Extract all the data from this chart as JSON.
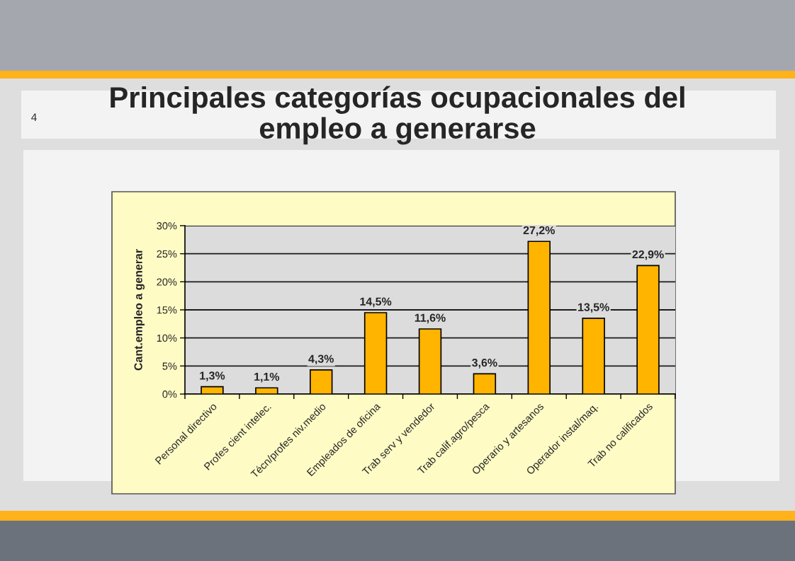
{
  "chart_data": {
    "type": "bar",
    "title": "Principales categorías ocupacionales del\nempleo a generarse",
    "ylabel": "Cant.empleo a generar",
    "annotations": [
      "4"
    ],
    "categories": [
      "Personal directivo",
      "Profes cient intelec.",
      "Técn/profes niv.medio",
      "Empleados de oficina",
      "Trab serv y vendedor",
      "Trab calif.agro/pesca",
      "Operario y artesanos",
      "Operador instal/maq.",
      "Trab no calificados"
    ],
    "values": [
      1.3,
      1.1,
      4.3,
      14.5,
      11.6,
      3.6,
      27.2,
      13.5,
      22.9
    ],
    "value_labels": [
      "1,3%",
      "1,1%",
      "4,3%",
      "14,5%",
      "11,6%",
      "3,6%",
      "27,2%",
      "13,5%",
      "22,9%"
    ],
    "color": "#ffb400",
    "ylim": [
      0,
      30
    ],
    "yticks": [
      {
        "value": 0,
        "label": "0%"
      },
      {
        "value": 5,
        "label": "5%"
      },
      {
        "value": 10,
        "label": "10%"
      },
      {
        "value": 15,
        "label": "15%"
      },
      {
        "value": 20,
        "label": "20%"
      },
      {
        "value": 25,
        "label": "25%"
      },
      {
        "value": 30,
        "label": "30%"
      }
    ],
    "grid": "y"
  }
}
